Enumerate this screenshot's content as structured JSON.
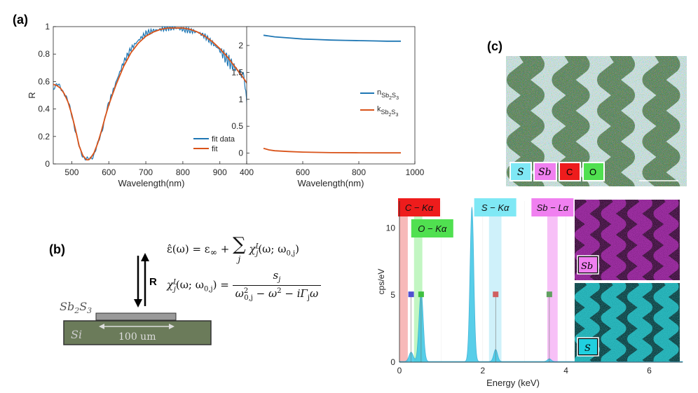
{
  "panels": {
    "a": "(a)",
    "b": "(b)",
    "c": "(c)"
  },
  "chart_data": [
    {
      "type": "line",
      "xlabel": "Wavelength(nm)",
      "ylabel": "R",
      "xlim": [
        450,
        980
      ],
      "ylim": [
        0,
        1
      ],
      "xticks": [
        "500",
        "600",
        "700",
        "800",
        "900"
      ],
      "xtick_values": [
        500,
        600,
        700,
        800,
        900
      ],
      "yticks": [
        "0",
        "0.2",
        "0.4",
        "0.6",
        "0.8",
        "1"
      ],
      "ytick_values": [
        0,
        0.2,
        0.4,
        0.6,
        0.8,
        1
      ],
      "legend_position": "bottom-right",
      "series": [
        {
          "name": "fit data",
          "color": "#1f77b4",
          "x": [
            450,
            460,
            470,
            480,
            490,
            500,
            510,
            520,
            530,
            540,
            545,
            550,
            560,
            570,
            580,
            590,
            600,
            620,
            640,
            660,
            680,
            700,
            720,
            740,
            760,
            780,
            800,
            820,
            840,
            860,
            880,
            900,
            920,
            940,
            960,
            970,
            975
          ],
          "y": [
            0.56,
            0.58,
            0.55,
            0.52,
            0.45,
            0.36,
            0.24,
            0.12,
            0.06,
            0.03,
            0.03,
            0.04,
            0.07,
            0.14,
            0.23,
            0.34,
            0.44,
            0.6,
            0.74,
            0.84,
            0.9,
            0.95,
            0.97,
            0.98,
            0.99,
            0.99,
            0.98,
            0.97,
            0.96,
            0.93,
            0.88,
            0.83,
            0.76,
            0.7,
            0.65,
            0.55,
            0.35
          ]
        },
        {
          "name": "fit",
          "color": "#d95319",
          "x": [
            450,
            460,
            470,
            480,
            490,
            500,
            510,
            520,
            530,
            540,
            545,
            550,
            560,
            570,
            580,
            590,
            600,
            620,
            640,
            660,
            680,
            700,
            720,
            740,
            760,
            780,
            800,
            820,
            840,
            860,
            880,
            900,
            920,
            940,
            960,
            975
          ],
          "y": [
            0.58,
            0.57,
            0.55,
            0.51,
            0.45,
            0.36,
            0.25,
            0.13,
            0.06,
            0.03,
            0.03,
            0.04,
            0.08,
            0.15,
            0.24,
            0.34,
            0.43,
            0.58,
            0.71,
            0.81,
            0.88,
            0.93,
            0.96,
            0.98,
            0.99,
            0.99,
            0.99,
            0.98,
            0.96,
            0.93,
            0.89,
            0.84,
            0.78,
            0.71,
            0.64,
            0.58
          ]
        }
      ]
    },
    {
      "type": "line",
      "xlabel": "Wavelength(nm)",
      "ylabel": "",
      "xlim": [
        400,
        1000
      ],
      "ylim": [
        -0.2,
        2.35
      ],
      "xticks": [
        "400",
        "600",
        "800",
        "1000"
      ],
      "xtick_values": [
        400,
        600,
        800,
        1000
      ],
      "yticks": [
        "0",
        "0.5",
        "1",
        "1.5",
        "2"
      ],
      "ytick_values": [
        0,
        0.5,
        1,
        1.5,
        2
      ],
      "legend_position": "right",
      "series": [
        {
          "name": "n",
          "sub": "Sb2S3",
          "color": "#1f77b4",
          "x": [
            460,
            500,
            550,
            600,
            650,
            700,
            750,
            800,
            850,
            900,
            950
          ],
          "y": [
            2.19,
            2.16,
            2.14,
            2.12,
            2.11,
            2.1,
            2.095,
            2.09,
            2.085,
            2.08,
            2.08
          ]
        },
        {
          "name": "k",
          "sub": "Sb2S3",
          "color": "#d95319",
          "x": [
            460,
            480,
            500,
            550,
            600,
            650,
            700,
            800,
            900,
            950
          ],
          "y": [
            0.09,
            0.06,
            0.045,
            0.03,
            0.02,
            0.015,
            0.01,
            0.007,
            0.005,
            0.005
          ]
        }
      ]
    },
    {
      "type": "area",
      "xlabel": "Energy (keV)",
      "ylabel": "cps/eV",
      "xlim": [
        0,
        6.8
      ],
      "ylim": [
        0,
        12
      ],
      "xticks": [
        "0",
        "2",
        "4",
        "6"
      ],
      "xtick_values": [
        0,
        2,
        4,
        6
      ],
      "yticks": [
        "0",
        "5",
        "10"
      ],
      "ytick_values": [
        0,
        5,
        10
      ],
      "peaks": [
        {
          "label": "C",
          "energy": 0.28,
          "height": 0.7
        },
        {
          "label": "O",
          "energy": 0.52,
          "height": 5.2
        },
        {
          "label": "S",
          "energy": 2.31,
          "height": 0.9
        },
        {
          "label": "Sb",
          "energy": 3.6,
          "height": 0.2
        },
        {
          "label": "",
          "energy": 1.74,
          "height": 11.5
        }
      ],
      "bands": [
        {
          "label": "C − Kα",
          "from": 0.0,
          "to": 0.2,
          "color": "#f08080"
        },
        {
          "label": "O − Kα",
          "from": 0.35,
          "to": 0.55,
          "color": "#90ee90"
        },
        {
          "label": "S − Kα",
          "from": 2.15,
          "to": 2.45,
          "color": "#a8e6f5"
        },
        {
          "label": "Sb − Lα",
          "from": 3.55,
          "to": 3.8,
          "color": "#f08cf0"
        }
      ]
    }
  ],
  "formula": {
    "eps_lhs": "ε̂(ω) = ε",
    "eps_inf": "∞",
    "plus": " + ",
    "sigma": "∑",
    "sum_index": "j",
    "chi": "χ",
    "chi_sup": "L",
    "chi_sub": "j",
    "chi_args": "(ω; ω",
    "omega_sub": "0,j",
    "close": ")",
    "equals": " = ",
    "num": "s",
    "num_sub": "j",
    "den_a": "ω",
    "den_a_sub": "0,j",
    "den_a_sup": "2",
    "den_b": " − ω",
    "den_b_sup": "2",
    "den_c": " − iΓ",
    "den_c_sub": "j",
    "den_d": "ω"
  },
  "schematic": {
    "film_label": "Sb",
    "film_sub1": "2",
    "film_mid": "S",
    "film_sub2": "3",
    "substrate_label": "Si",
    "width_label": "100 um",
    "r_label": "R"
  },
  "eds": {
    "legend": [
      "S",
      "Sb",
      "C",
      "O"
    ],
    "band_labels": [
      "C − Kα",
      "O − Kα",
      "S − Kα",
      "Sb − Lα"
    ],
    "map_sb": "Sb",
    "map_s": "S"
  },
  "colors": {
    "blue": "#1f77b4",
    "orange": "#d95319",
    "magenta": "#c020c0",
    "cyan": "#20c0c8"
  }
}
